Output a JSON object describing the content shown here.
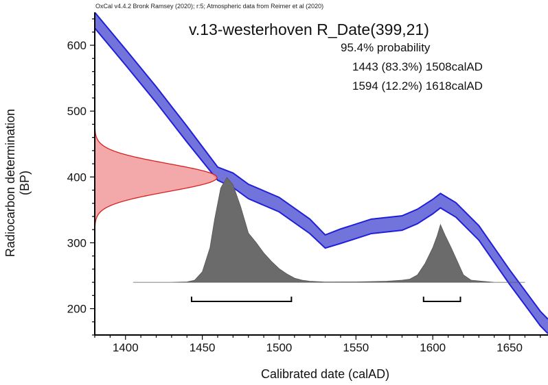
{
  "header": "OxCal v4.4.2 Bronk Ramsey (2020); r:5; Atmospheric data from Reimer et al (2020)",
  "colors": {
    "curve_fill": "#5b5bd6",
    "curve_stroke": "#1f1fd8",
    "radiocarbon_fill": "#f2a0a0",
    "radiocarbon_stroke": "#d81f1f",
    "posterior_fill": "#6b6b6b",
    "axis": "#000000"
  },
  "chart_data": {
    "type": "area",
    "title": "v.13-westerhoven R_Date(399,21)",
    "probability_heading": "95.4% probability",
    "ranges": [
      {
        "label": "1443 (83.3%) 1508calAD",
        "from": 1443,
        "to": 1508,
        "percent": 83.3
      },
      {
        "label": "1594 (12.2%) 1618calAD",
        "from": 1594,
        "to": 1618,
        "percent": 12.2
      }
    ],
    "xlabel": "Calibrated date (calAD)",
    "ylabel": "Radiocarbon determination (BP)",
    "xlim": [
      1380,
      1675
    ],
    "ylim": [
      160,
      650
    ],
    "x_ticks": [
      1400,
      1450,
      1500,
      1550,
      1600,
      1650
    ],
    "y_ticks": [
      200,
      300,
      400,
      500,
      600
    ],
    "calibration_curve": {
      "x": [
        1380,
        1400,
        1420,
        1440,
        1460,
        1470,
        1480,
        1500,
        1520,
        1530,
        1540,
        1560,
        1580,
        1590,
        1600,
        1605,
        1615,
        1630,
        1650,
        1670,
        1675
      ],
      "mid": [
        638,
        582,
        525,
        465,
        405,
        395,
        378,
        358,
        325,
        302,
        310,
        325,
        330,
        340,
        355,
        364,
        350,
        315,
        248,
        185,
        173
      ],
      "sd": [
        12,
        12,
        12,
        12,
        10,
        11,
        11,
        11,
        11,
        10,
        11,
        11,
        11,
        11,
        11,
        11,
        11,
        11,
        11,
        11,
        11
      ]
    },
    "radiocarbon_date": {
      "mean": 399,
      "sd": 21
    },
    "posterior_distribution": {
      "baseline_bp": 240,
      "x": [
        1405,
        1430,
        1440,
        1445,
        1450,
        1455,
        1458,
        1462,
        1466,
        1470,
        1475,
        1480,
        1485,
        1490,
        1495,
        1500,
        1505,
        1510,
        1515,
        1520,
        1530,
        1550,
        1570,
        1580,
        1585,
        1590,
        1595,
        1600,
        1603,
        1605,
        1608,
        1612,
        1616,
        1620,
        1625,
        1640,
        1660
      ],
      "density": [
        0,
        0,
        0.004,
        0.02,
        0.1,
        0.33,
        0.6,
        0.9,
        1.0,
        0.93,
        0.72,
        0.47,
        0.38,
        0.28,
        0.2,
        0.13,
        0.08,
        0.04,
        0.02,
        0.01,
        0.003,
        0.004,
        0.01,
        0.02,
        0.03,
        0.07,
        0.18,
        0.33,
        0.45,
        0.55,
        0.45,
        0.33,
        0.2,
        0.07,
        0.02,
        0,
        0
      ]
    }
  }
}
